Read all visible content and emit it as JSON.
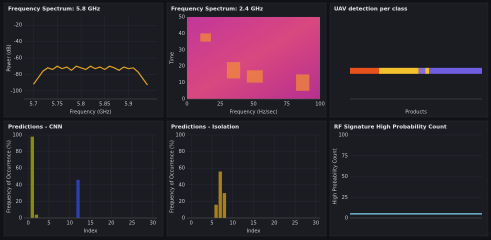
{
  "panels": [
    {
      "type": "line",
      "title": "Frequency Spectrum: 5.8 GHz",
      "x_label": "Frequency (GHz)",
      "y_label": "Power (dB)",
      "color": "#e0a21b",
      "x": [
        5.7,
        5.71,
        5.72,
        5.73,
        5.74,
        5.75,
        5.76,
        5.77,
        5.78,
        5.79,
        5.8,
        5.81,
        5.82,
        5.83,
        5.84,
        5.85,
        5.86,
        5.87,
        5.88,
        5.89,
        5.9,
        5.91,
        5.92,
        5.93,
        5.94
      ],
      "values": [
        -92,
        -84,
        -76,
        -72,
        -74,
        -70,
        -73,
        -71,
        -75,
        -70,
        -72,
        -74,
        -70,
        -73,
        -71,
        -74,
        -70,
        -72,
        -75,
        -71,
        -73,
        -72,
        -77,
        -85,
        -93
      ],
      "xlim": [
        5.68,
        5.96
      ],
      "xticks": [
        5.7,
        5.75,
        5.8,
        5.85,
        5.9
      ],
      "ylim": [
        -110,
        -10
      ],
      "yticks": [
        -100,
        -80,
        -60,
        -40,
        -20
      ]
    },
    {
      "type": "heatmap",
      "title": "Frequency Spectrum: 2.4 GHz",
      "x_label": "Frequency (Hz/sec)",
      "y_label": "Time",
      "xlim": [
        0,
        100
      ],
      "xticks": [
        0,
        25,
        50,
        75,
        100
      ],
      "ylim": [
        0,
        50
      ],
      "yticks": [
        0,
        10,
        20,
        30,
        40,
        50
      ]
    },
    {
      "type": "strip",
      "title": "UAV detection per class",
      "x_label": "Products",
      "segments": [
        {
          "color": "#e8501c",
          "value": 22
        },
        {
          "color": "#f2c12e",
          "value": 30
        },
        {
          "color": "#8b6fd6",
          "value": 5
        },
        {
          "color": "#f2c12e",
          "value": 3
        },
        {
          "color": "#6f5ee0",
          "value": 40
        }
      ],
      "xlim": [
        0,
        100
      ]
    },
    {
      "type": "bar",
      "title": "Predictions - CNN",
      "x_label": "Index",
      "y_label": "Frequency of Occurrence (%)",
      "x": [
        1,
        2,
        12
      ],
      "values": [
        98,
        4,
        46
      ],
      "colors": [
        "#8a8a1c",
        "#8a8a1c",
        "#2b3db8"
      ],
      "xlim": [
        -1,
        31
      ],
      "xticks": [
        0,
        5,
        10,
        15,
        20,
        25,
        30
      ],
      "ylim": [
        0,
        100
      ],
      "yticks": [
        0,
        20,
        40,
        60,
        80,
        100
      ]
    },
    {
      "type": "bar",
      "title": "Predictions - Isolation",
      "x_label": "Index",
      "y_label": "Frequency of Occurrence (%)",
      "x": [
        6,
        7,
        8
      ],
      "values": [
        16,
        56,
        30
      ],
      "colors": [
        "#a8801e",
        "#a8801e",
        "#a8801e"
      ],
      "xlim": [
        -1,
        31
      ],
      "xticks": [
        0,
        5,
        10,
        15,
        20,
        25,
        30
      ],
      "ylim": [
        0,
        100
      ],
      "yticks": [
        0,
        20,
        40,
        60,
        80,
        100
      ]
    },
    {
      "type": "line",
      "title": "RF Signature High Probability Count",
      "y_label": "High Probability Count",
      "color": "#7fd3f0",
      "x": [
        0,
        100
      ],
      "values": [
        5,
        5
      ],
      "xlim": [
        0,
        100
      ],
      "ylim": [
        0,
        100
      ],
      "yticks": [
        0,
        25,
        50,
        75,
        100
      ]
    }
  ]
}
